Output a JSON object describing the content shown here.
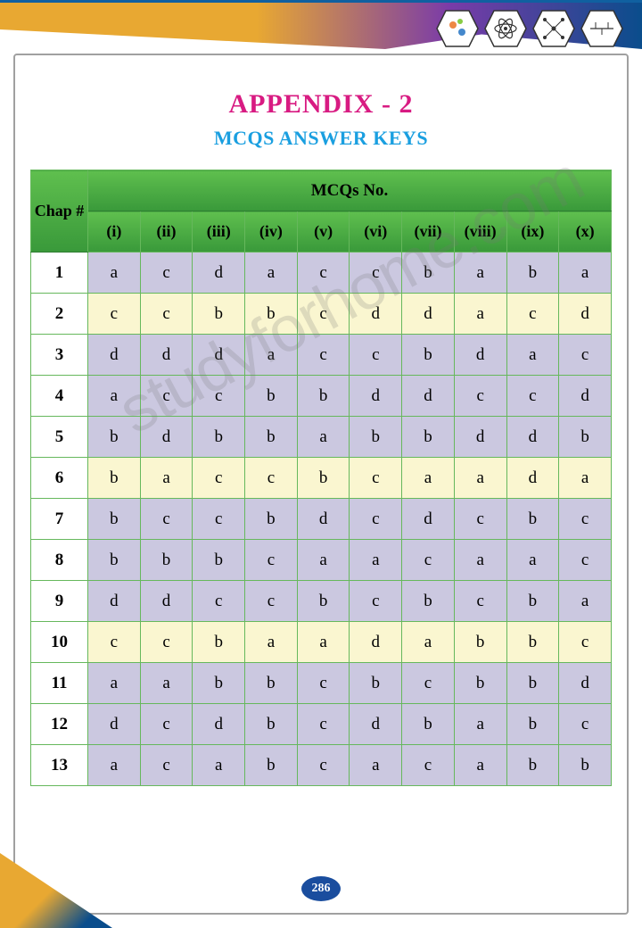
{
  "title": "APPENDIX - 2",
  "subtitle": "MCQS ANSWER KEYS",
  "watermark": "studyforhome.com",
  "page_number": "286",
  "header": {
    "chap_label": "Chap #",
    "mcq_label": "MCQs No.",
    "columns": [
      "(i)",
      "(ii)",
      "(iii)",
      "(iv)",
      "(v)",
      "(vi)",
      "(vii)",
      "(viii)",
      "(ix)",
      "(x)"
    ]
  },
  "rows": [
    {
      "n": "1",
      "style": "lav",
      "a": [
        "a",
        "c",
        "d",
        "a",
        "c",
        "c",
        "b",
        "a",
        "b",
        "a"
      ]
    },
    {
      "n": "2",
      "style": "yel",
      "a": [
        "c",
        "c",
        "b",
        "b",
        "c",
        "d",
        "d",
        "a",
        "c",
        "d"
      ]
    },
    {
      "n": "3",
      "style": "lav",
      "a": [
        "d",
        "d",
        "d",
        "a",
        "c",
        "c",
        "b",
        "d",
        "a",
        "c"
      ]
    },
    {
      "n": "4",
      "style": "lav",
      "a": [
        "a",
        "c",
        "c",
        "b",
        "b",
        "d",
        "d",
        "c",
        "c",
        "d"
      ]
    },
    {
      "n": "5",
      "style": "lav",
      "a": [
        "b",
        "d",
        "b",
        "b",
        "a",
        "b",
        "b",
        "d",
        "d",
        "b"
      ]
    },
    {
      "n": "6",
      "style": "yel",
      "a": [
        "b",
        "a",
        "c",
        "c",
        "b",
        "c",
        "a",
        "a",
        "d",
        "a"
      ]
    },
    {
      "n": "7",
      "style": "lav",
      "a": [
        "b",
        "c",
        "c",
        "b",
        "d",
        "c",
        "d",
        "c",
        "b",
        "c"
      ]
    },
    {
      "n": "8",
      "style": "lav",
      "a": [
        "b",
        "b",
        "b",
        "c",
        "a",
        "a",
        "c",
        "a",
        "a",
        "c"
      ]
    },
    {
      "n": "9",
      "style": "lav",
      "a": [
        "d",
        "d",
        "c",
        "c",
        "b",
        "c",
        "b",
        "c",
        "b",
        "a"
      ]
    },
    {
      "n": "10",
      "style": "yel",
      "a": [
        "c",
        "c",
        "b",
        "a",
        "a",
        "d",
        "a",
        "b",
        "b",
        "c"
      ]
    },
    {
      "n": "11",
      "style": "lav",
      "a": [
        "a",
        "a",
        "b",
        "b",
        "c",
        "b",
        "c",
        "b",
        "b",
        "d"
      ]
    },
    {
      "n": "12",
      "style": "lav",
      "a": [
        "d",
        "c",
        "d",
        "b",
        "c",
        "d",
        "b",
        "a",
        "b",
        "c"
      ]
    },
    {
      "n": "13",
      "style": "lav",
      "a": [
        "a",
        "c",
        "a",
        "b",
        "c",
        "a",
        "c",
        "a",
        "b",
        "b"
      ]
    }
  ],
  "colors": {
    "title": "#d81b82",
    "subtitle": "#1a9fe0",
    "header_grad_top": "#5fbf4e",
    "header_grad_bot": "#39993a",
    "lavender_row": "#cbc8e0",
    "yellow_row": "#faf6d0",
    "cell_border": "#66b85c",
    "page_badge": "#1a4d9e"
  }
}
